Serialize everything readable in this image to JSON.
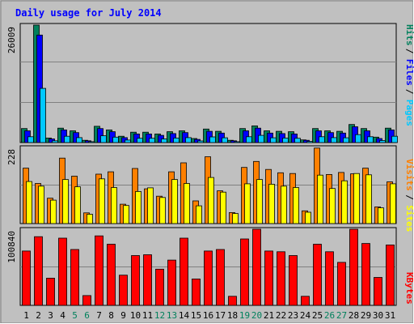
{
  "chart_data": {
    "type": "bar",
    "title": "Daily usage for July 2014",
    "categories": [
      "1",
      "2",
      "3",
      "4",
      "5",
      "6",
      "7",
      "8",
      "9",
      "10",
      "11",
      "12",
      "13",
      "14",
      "15",
      "16",
      "17",
      "18",
      "19",
      "20",
      "21",
      "22",
      "23",
      "24",
      "25",
      "26",
      "27",
      "28",
      "29",
      "30",
      "31"
    ],
    "weekend_days": [
      "5",
      "6",
      "12",
      "13",
      "19",
      "20",
      "26",
      "27"
    ],
    "panels": [
      {
        "id": "pages_files_hits",
        "ymax_label": "26009",
        "ymax": 26009,
        "series": [
          {
            "name": "Hits",
            "color": "#00805c",
            "values": [
              3100,
              26009,
              1000,
              3200,
              2600,
              500,
              3600,
              2800,
              1400,
              2300,
              2300,
              1900,
              2400,
              2600,
              900,
              3000,
              2500,
              500,
              3100,
              3700,
              2600,
              2500,
              2400,
              600,
              3100,
              2600,
              2500,
              4000,
              3100,
              1200,
              3200
            ]
          },
          {
            "name": "Files",
            "color": "#0000ff",
            "values": [
              2600,
              23800,
              800,
              2800,
              2200,
              400,
              3100,
              2400,
              1100,
              1900,
              1900,
              1600,
              2000,
              2200,
              700,
              2500,
              2100,
              400,
              2600,
              3200,
              2100,
              2000,
              1900,
              500,
              2600,
              2200,
              2100,
              3500,
              2600,
              900,
              2800
            ]
          },
          {
            "name": "Pages",
            "color": "#00c8ff",
            "values": [
              1300,
              12000,
              400,
              1400,
              1100,
              200,
              1500,
              1200,
              550,
              950,
              950,
              800,
              1000,
              1100,
              350,
              1250,
              1050,
              200,
              1300,
              1600,
              1050,
              1000,
              950,
              250,
              1300,
              1100,
              1050,
              1750,
              1300,
              450,
              1400
            ]
          }
        ],
        "axis_labels": [
          "Hits",
          "Files",
          "Pages"
        ]
      },
      {
        "id": "visits_sites",
        "ymax_label": "228",
        "ymax": 228,
        "series": [
          {
            "name": "Visits",
            "color": "#ff8000",
            "values": [
              166,
              120,
              76,
              196,
              142,
              32,
              148,
              155,
              58,
              165,
              104,
              82,
              155,
              182,
              68,
              200,
              98,
              33,
              168,
              186,
              162,
              152,
              150,
              38,
              226,
              147,
              153,
              149,
              166,
              50,
              125
            ]
          },
          {
            "name": "Sites",
            "color": "#ffff00",
            "values": [
              126,
              112,
              70,
              132,
              110,
              28,
              134,
              108,
              54,
              96,
              107,
              78,
              132,
              120,
              53,
              138,
              94,
              30,
              119,
              132,
              118,
              112,
              108,
              34,
              145,
              105,
              128,
              150,
              146,
              47,
              119
            ]
          }
        ],
        "axis_labels": [
          "Visits",
          "Sites"
        ]
      },
      {
        "id": "kbytes",
        "ymax_label": "100840",
        "ymax": 100840,
        "series": [
          {
            "name": "KBytes",
            "color": "#ff0000",
            "values": [
              72000,
              91000,
              36000,
              89000,
              74000,
              13000,
              92000,
              81000,
              40000,
              66000,
              67000,
              48000,
              60000,
              89000,
              35000,
              72000,
              74000,
              12000,
              88000,
              100840,
              72000,
              71000,
              66000,
              12000,
              81000,
              71000,
              57000,
              100840,
              82000,
              37000,
              80000
            ]
          }
        ],
        "axis_labels": [
          "KBytes"
        ]
      }
    ]
  }
}
